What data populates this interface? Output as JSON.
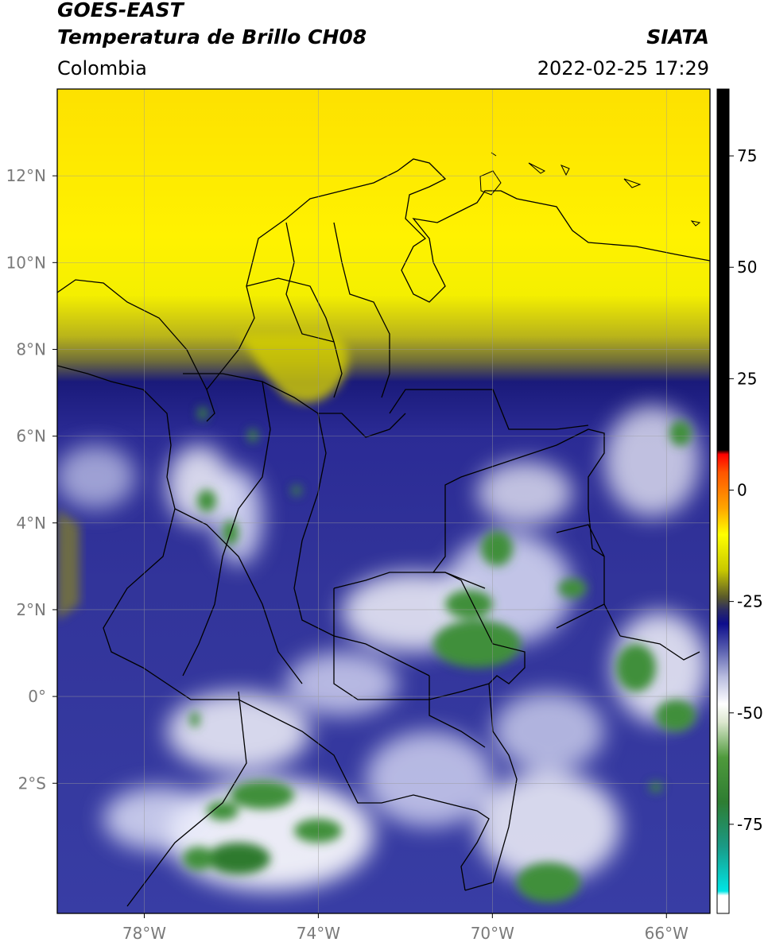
{
  "header": {
    "satellite": "GOES-EAST",
    "product": "Temperatura de Brillo CH08",
    "brand": "SIATA",
    "region": "Colombia",
    "datetime": "2022-02-25 17:29"
  },
  "axes": {
    "lat_ticks": [
      {
        "value": 12,
        "label": "12°N"
      },
      {
        "value": 10,
        "label": "10°N"
      },
      {
        "value": 8,
        "label": "8°N"
      },
      {
        "value": 6,
        "label": "6°N"
      },
      {
        "value": 4,
        "label": "4°N"
      },
      {
        "value": 2,
        "label": "2°N"
      },
      {
        "value": 0,
        "label": "0°"
      },
      {
        "value": -2,
        "label": "2°S"
      }
    ],
    "lon_ticks": [
      {
        "value": -78,
        "label": "78°W"
      },
      {
        "value": -74,
        "label": "74°W"
      },
      {
        "value": -70,
        "label": "70°W"
      },
      {
        "value": -66,
        "label": "66°W"
      }
    ],
    "lat_range": [
      -5.0,
      14.0
    ],
    "lon_range": [
      -80.0,
      -65.0
    ],
    "grid": true
  },
  "colorbar": {
    "ticks": [
      {
        "value": 75,
        "label": "75"
      },
      {
        "value": 50,
        "label": "50"
      },
      {
        "value": 25,
        "label": "25"
      },
      {
        "value": 0,
        "label": "0"
      },
      {
        "value": -25,
        "label": "-25"
      },
      {
        "value": -50,
        "label": "-50"
      },
      {
        "value": -75,
        "label": "-75"
      }
    ],
    "range": [
      -95,
      90
    ],
    "stops": [
      {
        "value": -95,
        "color": "#ffffff"
      },
      {
        "value": -91,
        "color": "#ffffff"
      },
      {
        "value": -90,
        "color": "#00e5e5"
      },
      {
        "value": -80,
        "color": "#1a9a86"
      },
      {
        "value": -70,
        "color": "#2e7d32"
      },
      {
        "value": -60,
        "color": "#4f9a3c"
      },
      {
        "value": -52,
        "color": "#dde8d0"
      },
      {
        "value": -48,
        "color": "#ffffff"
      },
      {
        "value": -42,
        "color": "#b9bde0"
      },
      {
        "value": -36,
        "color": "#5b61b0"
      },
      {
        "value": -30,
        "color": "#0d0d8c"
      },
      {
        "value": -27,
        "color": "#2a2a66"
      },
      {
        "value": -24,
        "color": "#5a5a2a"
      },
      {
        "value": -18,
        "color": "#c8c800"
      },
      {
        "value": -10,
        "color": "#ffff00"
      },
      {
        "value": -4,
        "color": "#ffa500"
      },
      {
        "value": 4,
        "color": "#ff5500"
      },
      {
        "value": 8,
        "color": "#ff0000"
      },
      {
        "value": 9,
        "color": "#000000"
      },
      {
        "value": 90,
        "color": "#000000"
      }
    ]
  }
}
